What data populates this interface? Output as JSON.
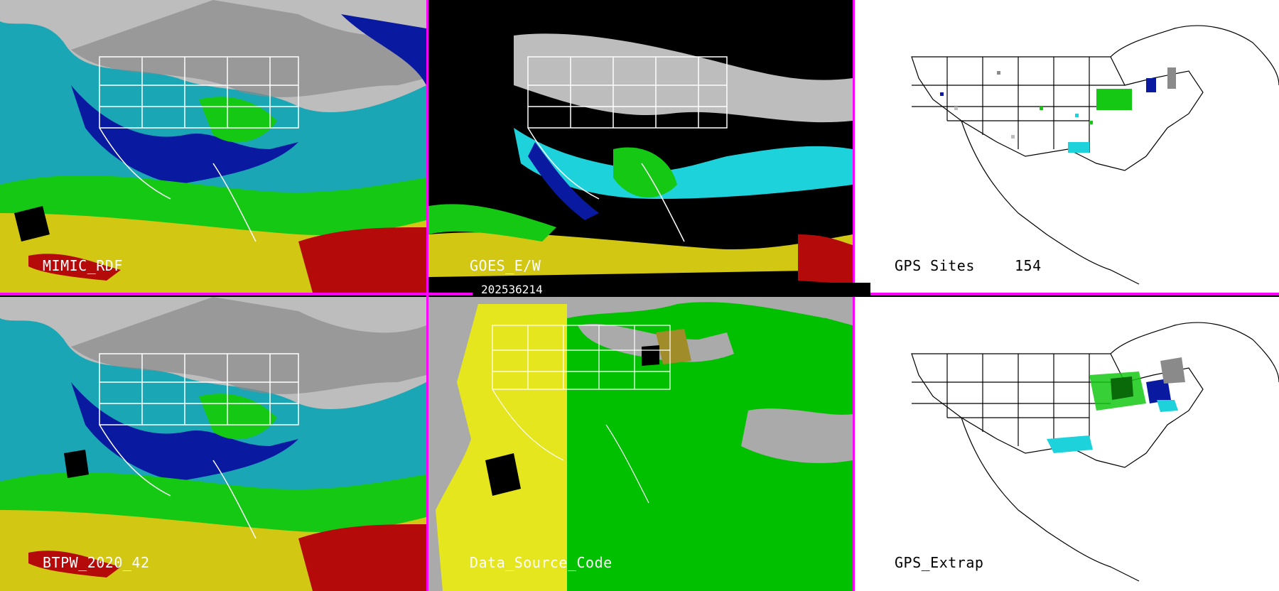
{
  "panels": {
    "mimic": {
      "label": "MIMIC_RDF"
    },
    "goes": {
      "label": "GOES_E/W"
    },
    "gps_sites": {
      "label": "GPS Sites",
      "count": "154"
    },
    "btpw": {
      "label": "BTPW_2020_42"
    },
    "source": {
      "label": "Data_Source_Code"
    },
    "gps_extrap": {
      "label": "GPS_Extrap"
    }
  },
  "timestamp": "202536214",
  "colors": {
    "separator": "#ff00ff",
    "gray_high": "#c8c8c8",
    "navy": "#0a1aa0",
    "cyan": "#1ed2dc",
    "green": "#14c814",
    "yellow": "#d2c814",
    "red": "#b40a0a",
    "source_gray": "#aaaaaa",
    "source_yellow": "#e6e61e",
    "source_green": "#00c000",
    "source_olive": "#a08c28"
  }
}
